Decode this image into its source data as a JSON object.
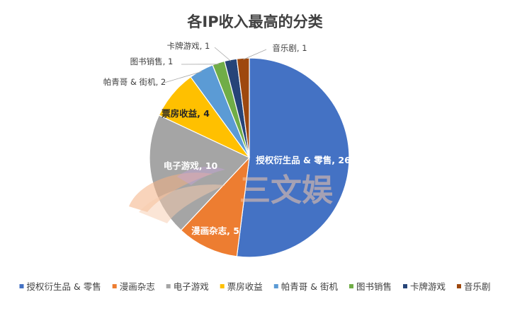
{
  "chart_data": {
    "type": "pie",
    "title": "各IP收入最高的分类",
    "categories": [
      "授权衍生品 & 零售",
      "漫画杂志",
      "电子游戏",
      "票房收益",
      "帕青哥 & 街机",
      "图书销售",
      "卡牌游戏",
      "音乐剧"
    ],
    "values": [
      26,
      5,
      10,
      4,
      2,
      1,
      1,
      1
    ],
    "data_labels": [
      "授权衍生品 & 零售, 26",
      "漫画杂志, 5",
      "电子游戏, 10",
      "票房收益, 4",
      "帕青哥 & 街机, 2",
      "图书销售, 1",
      "卡牌游戏, 1",
      "音乐剧, 1"
    ],
    "colors": [
      "#4472c4",
      "#ed7d31",
      "#a5a5a5",
      "#ffc000",
      "#5b9bd5",
      "#70ad47",
      "#264478",
      "#9e480e"
    ],
    "legend_position": "bottom"
  },
  "watermark": {
    "text": "三文娱",
    "colors": [
      "#f4b183",
      "#f8cbad",
      "#c5a3d9"
    ]
  }
}
